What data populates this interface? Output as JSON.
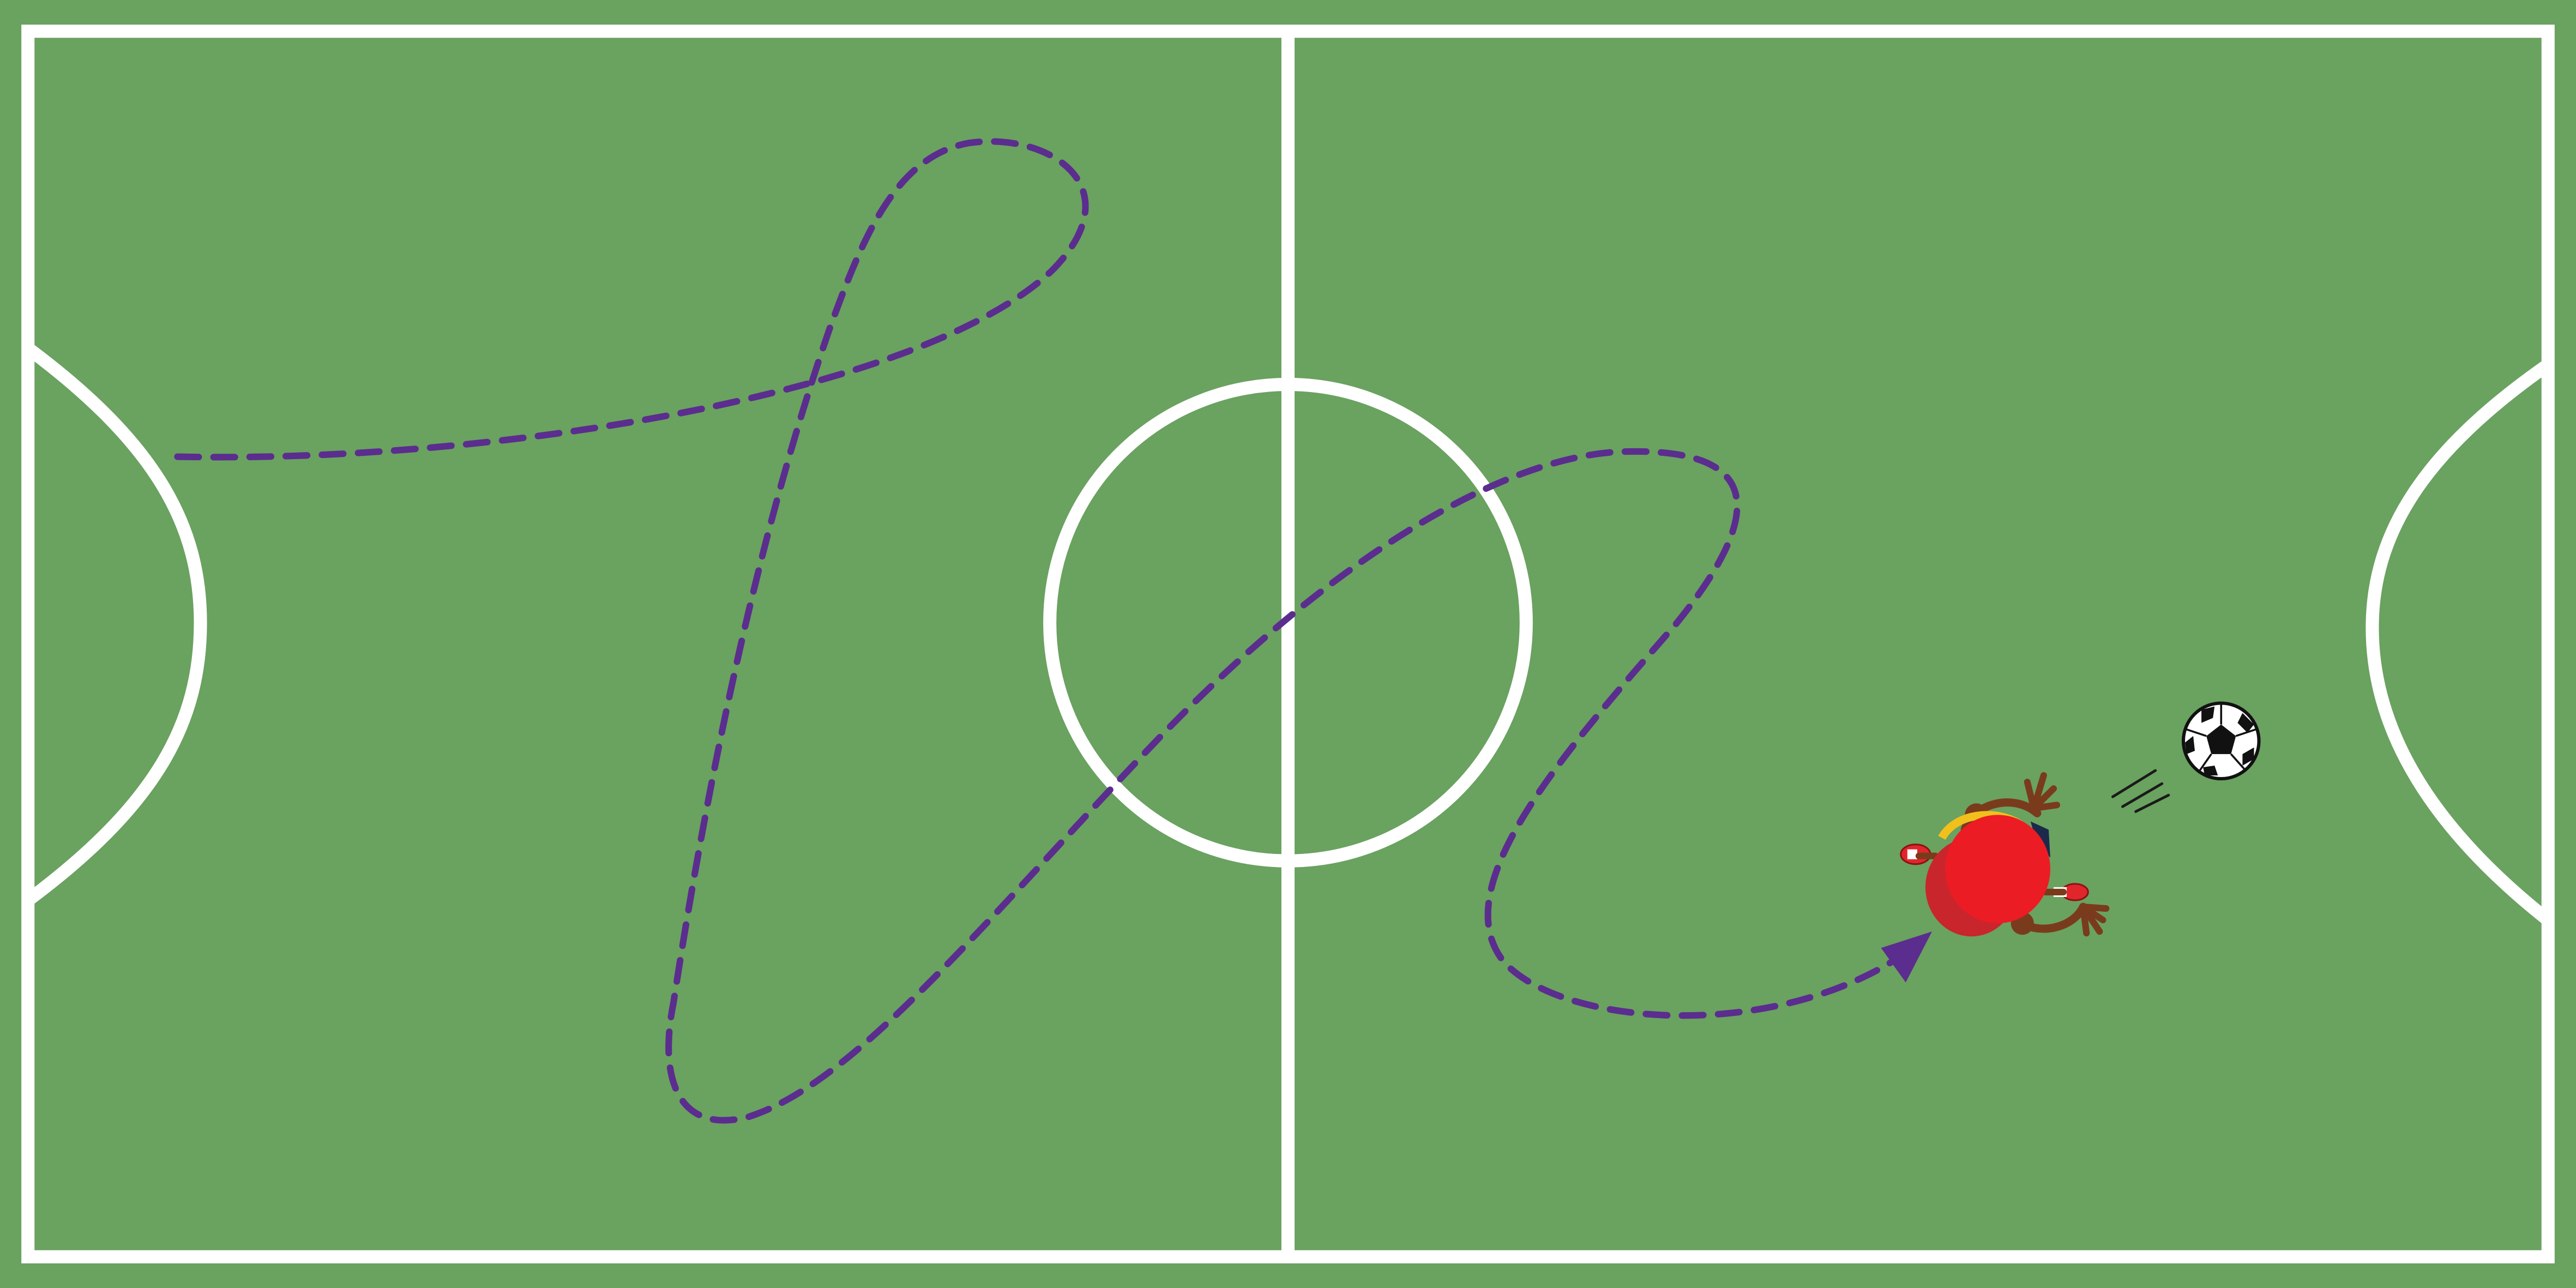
{
  "colors": {
    "pitch": "#6aa260",
    "lines": "#ffffff",
    "path": "#5b2d8e",
    "player_body": "#ec1c24",
    "player_shadow": "#c9252c",
    "player_collar": "#f2c01c",
    "player_hair": "#1b2a4a",
    "player_limbs": "#7a3b1c",
    "shoe": "#e0262b",
    "ball_white": "#ffffff",
    "ball_black": "#111111"
  },
  "icons": {
    "player": "player-running-topdown-icon",
    "ball": "soccer-ball-icon",
    "path_arrow": "arrowhead-icon",
    "motion_lines": "speed-lines-icon"
  }
}
